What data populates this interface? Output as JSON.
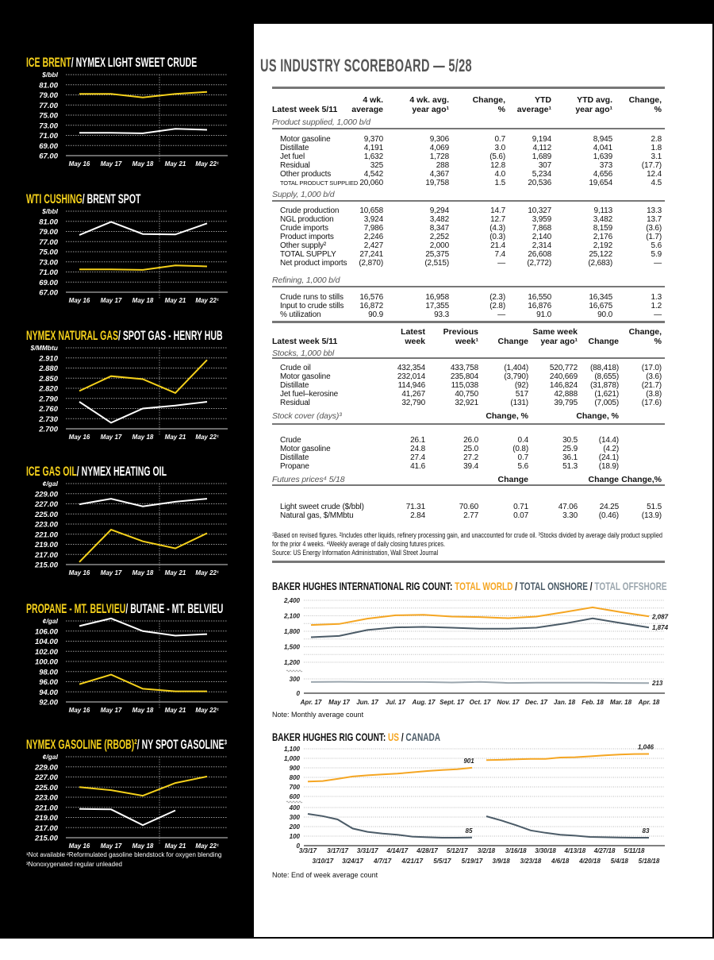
{
  "scoreboard": {
    "title": "US INDUSTRY SCOREBOARD — 5/28",
    "section1": {
      "headers": [
        "Latest week 5/11",
        "4 wk.\naverage",
        "4 wk. avg.\nyear ago¹",
        "Change,\n%",
        "YTD\naverage¹",
        "YTD avg.\nyear ago¹",
        "Change,\n%"
      ],
      "groups": [
        {
          "label": "Product supplied, 1,000 b/d",
          "sub": [],
          "rows": [
            [
              "Motor gasoline",
              "9,370",
              "9,306",
              "0.7",
              "9,194",
              "8,945",
              "2.8"
            ],
            [
              "Distillate",
              "4,191",
              "4,069",
              "3.0",
              "4,112",
              "4,041",
              "1.8"
            ],
            [
              "Jet fuel",
              "1,632",
              "1,728",
              "(5.6)",
              "1,689",
              "1,639",
              "3.1"
            ],
            [
              "Residual",
              "325",
              "288",
              "12.8",
              "307",
              "373",
              "(17.7)"
            ],
            [
              "Other products",
              "4,542",
              "4,367",
              "4.0",
              "5,234",
              "4,656",
              "12.4"
            ],
            [
              "TOTAL PRODUCT SUPPLIED",
              "20,060",
              "19,758",
              "1.5",
              "20,536",
              "19,654",
              "4.5"
            ]
          ]
        },
        {
          "label": "Supply, 1,000 b/d",
          "sub": [],
          "rows": [
            [
              "Crude production",
              "10,658",
              "9,294",
              "14.7",
              "10,327",
              "9,113",
              "13.3"
            ],
            [
              "NGL production",
              "3,924",
              "3,482",
              "12.7",
              "3,959",
              "3,482",
              "13.7"
            ],
            [
              "Crude imports",
              "7,986",
              "8,347",
              "(4.3)",
              "7,868",
              "8,159",
              "(3.6)"
            ],
            [
              "Product imports",
              "2,246",
              "2,252",
              "(0.3)",
              "2,140",
              "2,176",
              "(1.7)"
            ],
            [
              "Other supply²",
              "2,427",
              "2,000",
              "21.4",
              "2,314",
              "2,192",
              "5.6"
            ],
            [
              "TOTAL SUPPLY",
              "27,241",
              "25,375",
              "7.4",
              "26,608",
              "25,122",
              "5.9"
            ],
            [
              "Net product imports",
              "(2,870)",
              "(2,515)",
              "—",
              "(2,772)",
              "(2,683)",
              "—"
            ]
          ]
        },
        {
          "label": "Refining, 1,000 b/d",
          "sub": [],
          "rows": [
            [
              "Crude runs to stills",
              "16,576",
              "16,958",
              "(2.3)",
              "16,550",
              "16,345",
              "1.3"
            ],
            [
              "Input to crude stills",
              "16,872",
              "17,355",
              "(2.8)",
              "16,876",
              "16,675",
              "1.2"
            ],
            [
              "% utilization",
              "90.9",
              "93.3",
              "—",
              "91.0",
              "90.0",
              "—"
            ]
          ]
        }
      ]
    },
    "section2": {
      "headers": [
        "Latest week 5/11",
        "Latest\nweek",
        "Previous\nweek¹",
        "Change",
        "Same week\nyear ago¹",
        "Change",
        "Change,\n%"
      ],
      "groups": [
        {
          "label": "Stocks, 1,000 bbl",
          "sub": [],
          "rows": [
            [
              "Crude oil",
              "432,354",
              "433,758",
              "(1,404)",
              "520,772",
              "(88,418)",
              "(17.0)"
            ],
            [
              "Motor gasoline",
              "232,014",
              "235,804",
              "(3,790)",
              "240,669",
              "(8,655)",
              "(3.6)"
            ],
            [
              "Distillate",
              "114,946",
              "115,038",
              "(92)",
              "146,824",
              "(31,878)",
              "(21.7)"
            ],
            [
              "Jet fuel–kerosine",
              "41,267",
              "40,750",
              "517",
              "42,888",
              "(1,621)",
              "(3.8)"
            ],
            [
              "Residual",
              "32,790",
              "32,921",
              "(131)",
              "39,795",
              "(7,005)",
              "(17.6)"
            ]
          ]
        },
        {
          "label": "Stock cover (days)³",
          "sub": [
            "",
            "",
            "Change, %",
            "",
            "Change, %",
            ""
          ],
          "rows": [
            [
              "Crude",
              "26.1",
              "26.0",
              "0.4",
              "30.5",
              "(14.4)",
              ""
            ],
            [
              "Motor gasoline",
              "24.8",
              "25.0",
              "(0.8)",
              "25.9",
              "(4.2)",
              ""
            ],
            [
              "Distillate",
              "27.4",
              "27.2",
              "0.7",
              "36.1",
              "(24.1)",
              ""
            ],
            [
              "Propane",
              "41.6",
              "39.4",
              "5.6",
              "51.3",
              "(18.9)",
              ""
            ]
          ]
        },
        {
          "label": "Futures prices⁴ 5/18",
          "sub": [
            "",
            "",
            "Change",
            "",
            "Change",
            "Change,%"
          ],
          "rows": [
            [
              "Light sweet crude ($/bbl)",
              "71.31",
              "70.60",
              "0.71",
              "47.06",
              "24.25",
              "51.5"
            ],
            [
              "Natural gas, $/MMbtu",
              "2.84",
              "2.77",
              "0.07",
              "3.30",
              "(0.46)",
              "(13.9)"
            ]
          ]
        }
      ]
    },
    "footnotes": "¹Based on revised figures.  ²Includes other liquids, refinery processing gain, and unaccounted for crude oil.  ³Stocks divided by average daily product supplied for the prior 4 weeks.  ⁴Weekly average of daily closing futures prices.",
    "source": "Source:  US Energy Information Administration, Wall Street Journal"
  },
  "left_footnotes": [
    "¹Not available ²Reformulated gasoline blendstock for oxygen blending",
    "³Nonoxygenated regular unleaded"
  ],
  "colors": {
    "yellow": "#f5d11b",
    "white": "#ffffff",
    "orange": "#f5a623",
    "slate": "#4b5b67",
    "grey": "#9ba6ae"
  },
  "chart_data": [
    {
      "type": "line",
      "title_parts": [
        "ICE BRENT",
        "/ NYMEX LIGHT SWEET CRUDE"
      ],
      "ylabel": "$/bbl",
      "ylim": [
        67,
        83
      ],
      "yticks": [
        "67.00",
        "69.00",
        "71.00",
        "73.00",
        "75.00",
        "77.00",
        "79.00",
        "81.00"
      ],
      "categories": [
        "May 16",
        "May 17",
        "May 18",
        "May 21",
        "May 22¹"
      ],
      "series": [
        {
          "name": "ICE BRENT",
          "color": "#f5d11b",
          "values": [
            79.2,
            79.2,
            78.5,
            79.2,
            79.6
          ]
        },
        {
          "name": "NYMEX LIGHT SWEET CRUDE",
          "color": "#ffffff",
          "values": [
            71.5,
            71.5,
            71.4,
            72.3,
            72.1
          ]
        }
      ]
    },
    {
      "type": "line",
      "title_parts": [
        "WTI CUSHING",
        "/ BRENT SPOT"
      ],
      "ylabel": "$/bbl",
      "ylim": [
        67,
        83
      ],
      "yticks": [
        "67.00",
        "69.00",
        "71.00",
        "73.00",
        "75.00",
        "77.00",
        "79.00",
        "81.00"
      ],
      "categories": [
        "May 16",
        "May 17",
        "May 18",
        "May 21",
        "May 22¹"
      ],
      "series": [
        {
          "name": "WTI CUSHING",
          "color": "#f5d11b",
          "values": [
            71.5,
            71.5,
            71.4,
            72.3,
            72.1
          ]
        },
        {
          "name": "BRENT SPOT",
          "color": "#ffffff",
          "values": [
            78.3,
            80.9,
            78.5,
            78.4,
            80.6
          ]
        }
      ]
    },
    {
      "type": "line",
      "title_parts": [
        "NYMEX NATURAL GAS",
        "/ SPOT GAS - HENRY HUB"
      ],
      "ylabel": "$/MMbtu",
      "ylim": [
        2.7,
        2.94
      ],
      "yticks": [
        "2.700",
        "2.730",
        "2.760",
        "2.790",
        "2.820",
        "2.850",
        "2.880",
        "2.910"
      ],
      "categories": [
        "May 16",
        "May 17",
        "May 18",
        "May 21",
        "May 22¹"
      ],
      "series": [
        {
          "name": "NYMEX NATURAL GAS",
          "color": "#f5d11b",
          "values": [
            2.812,
            2.856,
            2.847,
            2.806,
            2.904
          ]
        },
        {
          "name": "SPOT GAS - HENRY HUB",
          "color": "#ffffff",
          "values": [
            2.78,
            2.718,
            2.76,
            2.769,
            2.78
          ]
        }
      ]
    },
    {
      "type": "line",
      "title_parts": [
        "ICE GAS OIL",
        "/ NYMEX HEATING OIL"
      ],
      "ylabel": "¢/gal",
      "ylim": [
        215,
        231
      ],
      "yticks": [
        "215.00",
        "217.00",
        "219.00",
        "221.00",
        "223.00",
        "225.00",
        "227.00",
        "229.00"
      ],
      "categories": [
        "May 16",
        "May 17",
        "May 18",
        "May 21",
        "May 22¹"
      ],
      "series": [
        {
          "name": "ICE GAS OIL",
          "color": "#f5d11b",
          "values": [
            215.5,
            221.9,
            219.6,
            218.2,
            221.2
          ]
        },
        {
          "name": "NYMEX HEATING OIL",
          "color": "#ffffff",
          "values": [
            226.9,
            228.0,
            226.5,
            227.4,
            228.0
          ]
        }
      ]
    },
    {
      "type": "line",
      "title_parts": [
        "PROPANE - MT. BELVIEU",
        "/ BUTANE - MT. BELVIEU"
      ],
      "ylabel": "¢/gal",
      "ylim": [
        92,
        108
      ],
      "yticks": [
        "92.00",
        "94.00",
        "96.00",
        "98.00",
        "100.00",
        "102.00",
        "104.00",
        "106.00"
      ],
      "categories": [
        "May 16",
        "May 17",
        "May 18",
        "May 21",
        "May 22¹"
      ],
      "series": [
        {
          "name": "PROPANE - MT. BELVIEU",
          "color": "#f5d11b",
          "values": [
            95.5,
            97.4,
            94.6,
            94.1,
            94.1
          ]
        },
        {
          "name": "BUTANE - MT. BELVIEU",
          "color": "#ffffff",
          "values": [
            107.0,
            108.5,
            106.0,
            105.1,
            105.4
          ]
        }
      ]
    },
    {
      "type": "line",
      "title_parts": [
        "NYMEX GASOLINE (RBOB)²",
        "/ NY SPOT GASOLINE³"
      ],
      "ylabel": "¢/gal",
      "ylim": [
        215,
        231
      ],
      "yticks": [
        "215.00",
        "217.00",
        "219.00",
        "221.00",
        "223.00",
        "225.00",
        "227.00",
        "229.00"
      ],
      "categories": [
        "May 16",
        "May 17",
        "May 18",
        "May 21",
        "May 22¹"
      ],
      "series": [
        {
          "name": "NYMEX GASOLINE (RBOB)",
          "color": "#f5d11b",
          "values": [
            225.0,
            224.4,
            223.3,
            225.8,
            227.1
          ]
        },
        {
          "name": "NY SPOT GASOLINE",
          "color": "#ffffff",
          "values": [
            220.7,
            220.6,
            217.5,
            220.4,
            null
          ]
        }
      ]
    },
    {
      "type": "line",
      "title_parts": [
        "BAKER HUGHES INTERNATIONAL RIG COUNT: ",
        "TOTAL WORLD",
        " / ",
        "TOTAL ONSHORE",
        " / ",
        "TOTAL OFFSHORE"
      ],
      "yticks": [
        0,
        300,
        1200,
        1500,
        1800,
        2100,
        2400
      ],
      "ytick_labels": [
        "0",
        "300",
        "1,200",
        "1,500",
        "1,800",
        "2,100",
        "2,400"
      ],
      "axis_break": [
        300,
        1200
      ],
      "categories": [
        "Apr. 17",
        "May 17",
        "Jun. 17",
        "Jul. 17",
        "Aug. 17",
        "Sept. 17",
        "Oct. 17",
        "Nov. 17",
        "Dec. 17",
        "Jan. 18",
        "Feb. 18",
        "Mar. 18",
        "Apr. 18"
      ],
      "series": [
        {
          "name": "TOTAL WORLD",
          "color": "#f5a623",
          "values": [
            1921,
            1941,
            2044,
            2110,
            2120,
            2085,
            2075,
            2054,
            2085,
            2171,
            2263,
            2171,
            2087
          ],
          "end_label": "2,087"
        },
        {
          "name": "TOTAL ONSHORE",
          "color": "#4b5b67",
          "values": [
            1685,
            1710,
            1825,
            1875,
            1885,
            1870,
            1850,
            1850,
            1870,
            1950,
            2050,
            1960,
            1874
          ],
          "end_label": "1,874"
        },
        {
          "name": "TOTAL OFFSHORE",
          "color": "#9ba6ae",
          "values": [
            235,
            240,
            235,
            235,
            235,
            225,
            237,
            215,
            222,
            222,
            222,
            215,
            213
          ],
          "end_label": "213"
        }
      ],
      "note": "Note: Monthly average count"
    },
    {
      "type": "line",
      "title_parts": [
        "BAKER HUGHES RIG COUNT: ",
        "US",
        " / ",
        "CANADA"
      ],
      "yticks": [
        0,
        100,
        200,
        300,
        400,
        600,
        700,
        800,
        900,
        1000,
        1100
      ],
      "ytick_labels": [
        "0",
        "100",
        "200",
        "300",
        "400",
        "600",
        "700",
        "800",
        "900",
        "1,000",
        "1,100"
      ],
      "axis_break": [
        400,
        600
      ],
      "segments": [
        {
          "categories": [
            "3/3/17",
            "3/10/17",
            "3/17/17",
            "3/24/17",
            "3/31/17",
            "4/7/17",
            "4/14/17",
            "4/21/17",
            "4/28/17",
            "5/5/17",
            "5/12/17",
            "5/19/17"
          ],
          "US": [
            756,
            762,
            784,
            809,
            822,
            831,
            839,
            853,
            867,
            877,
            885,
            901
          ],
          "CANADA": [
            333,
            310,
            275,
            180,
            145,
            127,
            114,
            95,
            88,
            83,
            83,
            85
          ],
          "end_labels": [
            "901",
            "85"
          ]
        },
        {
          "categories": [
            "3/2/18",
            "3/9/18",
            "3/16/18",
            "3/23/18",
            "3/30/18",
            "4/6/18",
            "4/13/18",
            "4/20/18",
            "4/27/18",
            "5/4/18",
            "5/11/18",
            "5/18/18"
          ],
          "US": [
            981,
            984,
            990,
            993,
            993,
            1008,
            1012,
            1021,
            1031,
            1040,
            1045,
            1046
          ],
          "CANADA": [
            308,
            265,
            215,
            160,
            135,
            115,
            105,
            92,
            88,
            86,
            83,
            83
          ],
          "end_labels": [
            "1,046",
            "83"
          ]
        }
      ],
      "series_colors": {
        "US": "#f5a623",
        "CANADA": "#4b5b67"
      },
      "note": "Note: End of week average count"
    }
  ]
}
